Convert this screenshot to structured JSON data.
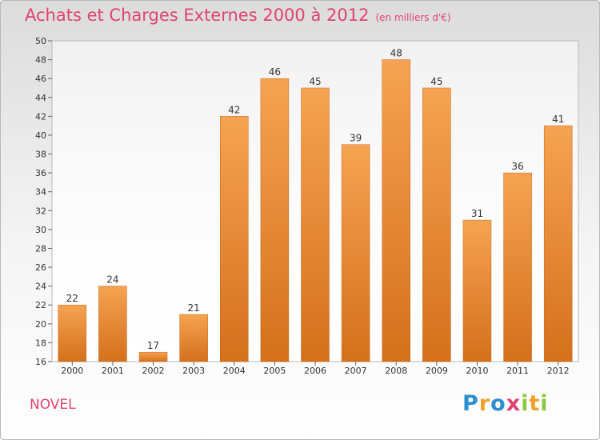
{
  "header": {
    "title": "Achats et Charges Externes 2000 à 2012",
    "subtitle": "(en milliers d'€)"
  },
  "footer": {
    "commune": "NOVEL",
    "brand_letters": [
      {
        "ch": "P",
        "color": "#2b8fd0"
      },
      {
        "ch": "r",
        "color": "#f0a028"
      },
      {
        "ch": "o",
        "color": "#2b8fd0"
      },
      {
        "ch": "x",
        "color": "#e0436f"
      },
      {
        "ch": "i",
        "color": "#8cc83c"
      },
      {
        "ch": "t",
        "color": "#f0a028"
      },
      {
        "ch": "i",
        "color": "#8cc83c"
      }
    ]
  },
  "chart_data": {
    "type": "bar",
    "title": "Achats et Charges Externes 2000 à 2012",
    "subtitle": "(en milliers d'€)",
    "categories": [
      "2000",
      "2001",
      "2002",
      "2003",
      "2004",
      "2005",
      "2006",
      "2007",
      "2008",
      "2009",
      "2010",
      "2011",
      "2012"
    ],
    "values": [
      22,
      24,
      17,
      21,
      42,
      46,
      45,
      39,
      48,
      45,
      31,
      36,
      41
    ],
    "ylim": [
      16,
      50
    ],
    "yticks": [
      16,
      18,
      20,
      22,
      24,
      26,
      28,
      30,
      32,
      34,
      36,
      38,
      40,
      42,
      44,
      46,
      48,
      50
    ],
    "grid": false,
    "bar_color_top": "#f5a352",
    "bar_color_bottom": "#d4701c"
  }
}
